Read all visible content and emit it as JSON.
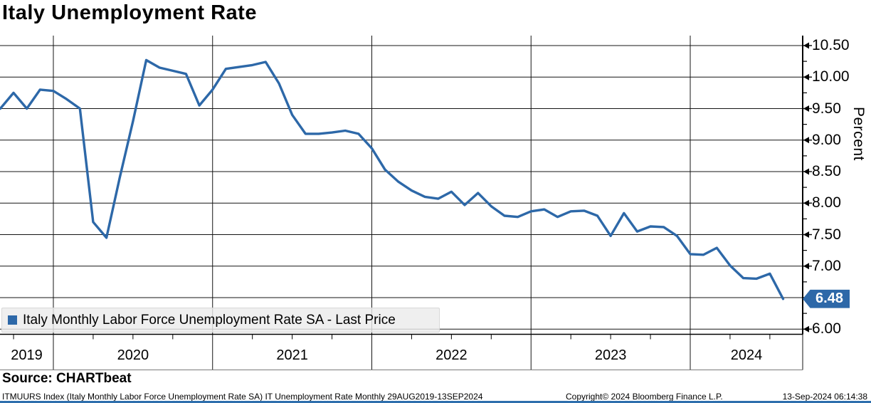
{
  "title": "Italy Unemployment Rate",
  "legend": {
    "label": "Italy Monthly Labor Force Unemployment Rate SA - Last Price"
  },
  "source_label": "Source: CHARTbeat",
  "footer": {
    "left": "ITMUURS Index (Italy Monthly Labor Force Unemployment Rate SA) IT Unemployment Rate  Monthly 29AUG2019-13SEP2024",
    "copyright": "Copyright© 2024 Bloomberg Finance L.P.",
    "datetime": "13-Sep-2024 06:14:38"
  },
  "colors": {
    "line": "#2d68a8",
    "tag_bg": "#2d68a8",
    "grid": "#141414",
    "axis": "#000000",
    "strip_rule": "#7a7a7a",
    "bottom_bar": "#2e6fad"
  },
  "chart_data": {
    "type": "line",
    "title": "Italy Unemployment Rate",
    "grid": true,
    "legend_position": "bottom-left",
    "y_axis": {
      "title": "Percent",
      "side": "right",
      "ticks": [
        10.5,
        10.0,
        9.5,
        9.0,
        8.5,
        8.0,
        7.5,
        7.0,
        6.5,
        6.0
      ],
      "tick_labels": [
        "10.50",
        "10.00",
        "9.50",
        "9.00",
        "8.50",
        "8.00",
        "7.50",
        "7.00",
        "6.50",
        "6.00"
      ],
      "minor_tick_step": 0.25,
      "ylim": [
        5.85,
        10.75
      ]
    },
    "x_axis": {
      "year_labels": [
        "2019",
        "2020",
        "2021",
        "2022",
        "2023",
        "2024"
      ],
      "range": "29AUG2019-13SEP2024",
      "frequency": "Monthly"
    },
    "last_price": {
      "value": 6.48,
      "label": "6.48"
    },
    "x": [
      "2019-09",
      "2019-10",
      "2019-11",
      "2019-12",
      "2020-01",
      "2020-02",
      "2020-03",
      "2020-04",
      "2020-05",
      "2020-06",
      "2020-07",
      "2020-08",
      "2020-09",
      "2020-10",
      "2020-11",
      "2020-12",
      "2021-01",
      "2021-02",
      "2021-03",
      "2021-04",
      "2021-05",
      "2021-06",
      "2021-07",
      "2021-08",
      "2021-09",
      "2021-10",
      "2021-11",
      "2021-12",
      "2022-01",
      "2022-02",
      "2022-03",
      "2022-04",
      "2022-05",
      "2022-06",
      "2022-07",
      "2022-08",
      "2022-09",
      "2022-10",
      "2022-11",
      "2022-12",
      "2023-01",
      "2023-02",
      "2023-03",
      "2023-04",
      "2023-05",
      "2023-06",
      "2023-07",
      "2023-08",
      "2023-09",
      "2023-10",
      "2023-11",
      "2023-12",
      "2024-01",
      "2024-02",
      "2024-03",
      "2024-04",
      "2024-05",
      "2024-06",
      "2024-07",
      "2024-08"
    ],
    "series": [
      {
        "name": "Italy Monthly Labor Force Unemployment Rate SA - Last Price",
        "color": "#2d68a8",
        "values": [
          9.5,
          9.75,
          9.5,
          9.8,
          9.78,
          9.65,
          9.5,
          7.7,
          7.45,
          8.4,
          9.3,
          10.27,
          10.15,
          10.1,
          10.05,
          9.55,
          9.8,
          10.13,
          10.16,
          10.19,
          10.24,
          9.9,
          9.4,
          9.1,
          9.1,
          9.12,
          9.15,
          9.1,
          8.87,
          8.53,
          8.34,
          8.2,
          8.1,
          8.07,
          8.18,
          7.97,
          8.16,
          7.95,
          7.8,
          7.78,
          7.87,
          7.9,
          7.78,
          7.87,
          7.88,
          7.8,
          7.48,
          7.84,
          7.55,
          7.63,
          7.62,
          7.48,
          7.19,
          7.18,
          7.29,
          7.01,
          6.81,
          6.8,
          6.88,
          6.48
        ]
      }
    ]
  }
}
